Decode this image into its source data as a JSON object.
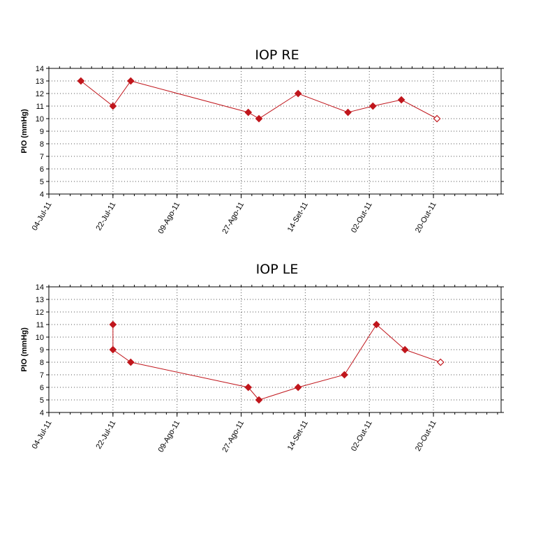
{
  "chart_data": [
    {
      "type": "line",
      "title": "IOP RE",
      "xlabel": "",
      "ylabel": "PIO (mmHg)",
      "ylim": [
        4,
        14
      ],
      "yticks": [
        4,
        5,
        6,
        7,
        8,
        9,
        10,
        11,
        12,
        13,
        14
      ],
      "xlim": [
        "2011-07-04",
        "2011-11-08"
      ],
      "xticks": [
        "04-Jul-11",
        "22-Jul-11",
        "09-Ago-11",
        "27-Ago-11",
        "14-Set-11",
        "02-Out-11",
        "20-Out-11"
      ],
      "grid": true,
      "color": "#c0161c",
      "series": [
        {
          "x": [
            "2011-07-13",
            "2011-07-22",
            "2011-07-27",
            "2011-08-29",
            "2011-09-01",
            "2011-09-12",
            "2011-09-26",
            "2011-10-03",
            "2011-10-11",
            "2011-10-21"
          ],
          "y": [
            13,
            11,
            13,
            10.5,
            10,
            12,
            10.5,
            11,
            11.5,
            10
          ],
          "last_point_hollow": true
        }
      ]
    },
    {
      "type": "line",
      "title": "IOP LE",
      "xlabel": "",
      "ylabel": "PIO (mmHg)",
      "ylim": [
        4,
        14
      ],
      "yticks": [
        4,
        5,
        6,
        7,
        8,
        9,
        10,
        11,
        12,
        13,
        14
      ],
      "xlim": [
        "2011-07-04",
        "2011-11-08"
      ],
      "xticks": [
        "04-Jul-11",
        "22-Jul-11",
        "09-Ago-11",
        "27-Ago-11",
        "14-Set-11",
        "02-Out-11",
        "20-Out-11"
      ],
      "grid": true,
      "color": "#c0161c",
      "series": [
        {
          "x": [
            "2011-07-22",
            "2011-07-22",
            "2011-07-27",
            "2011-08-29",
            "2011-09-01",
            "2011-09-12",
            "2011-09-25",
            "2011-10-04",
            "2011-10-12",
            "2011-10-22"
          ],
          "y": [
            11,
            9,
            8,
            6,
            5,
            6,
            7,
            11,
            9,
            8
          ],
          "last_point_hollow": true
        }
      ]
    }
  ]
}
